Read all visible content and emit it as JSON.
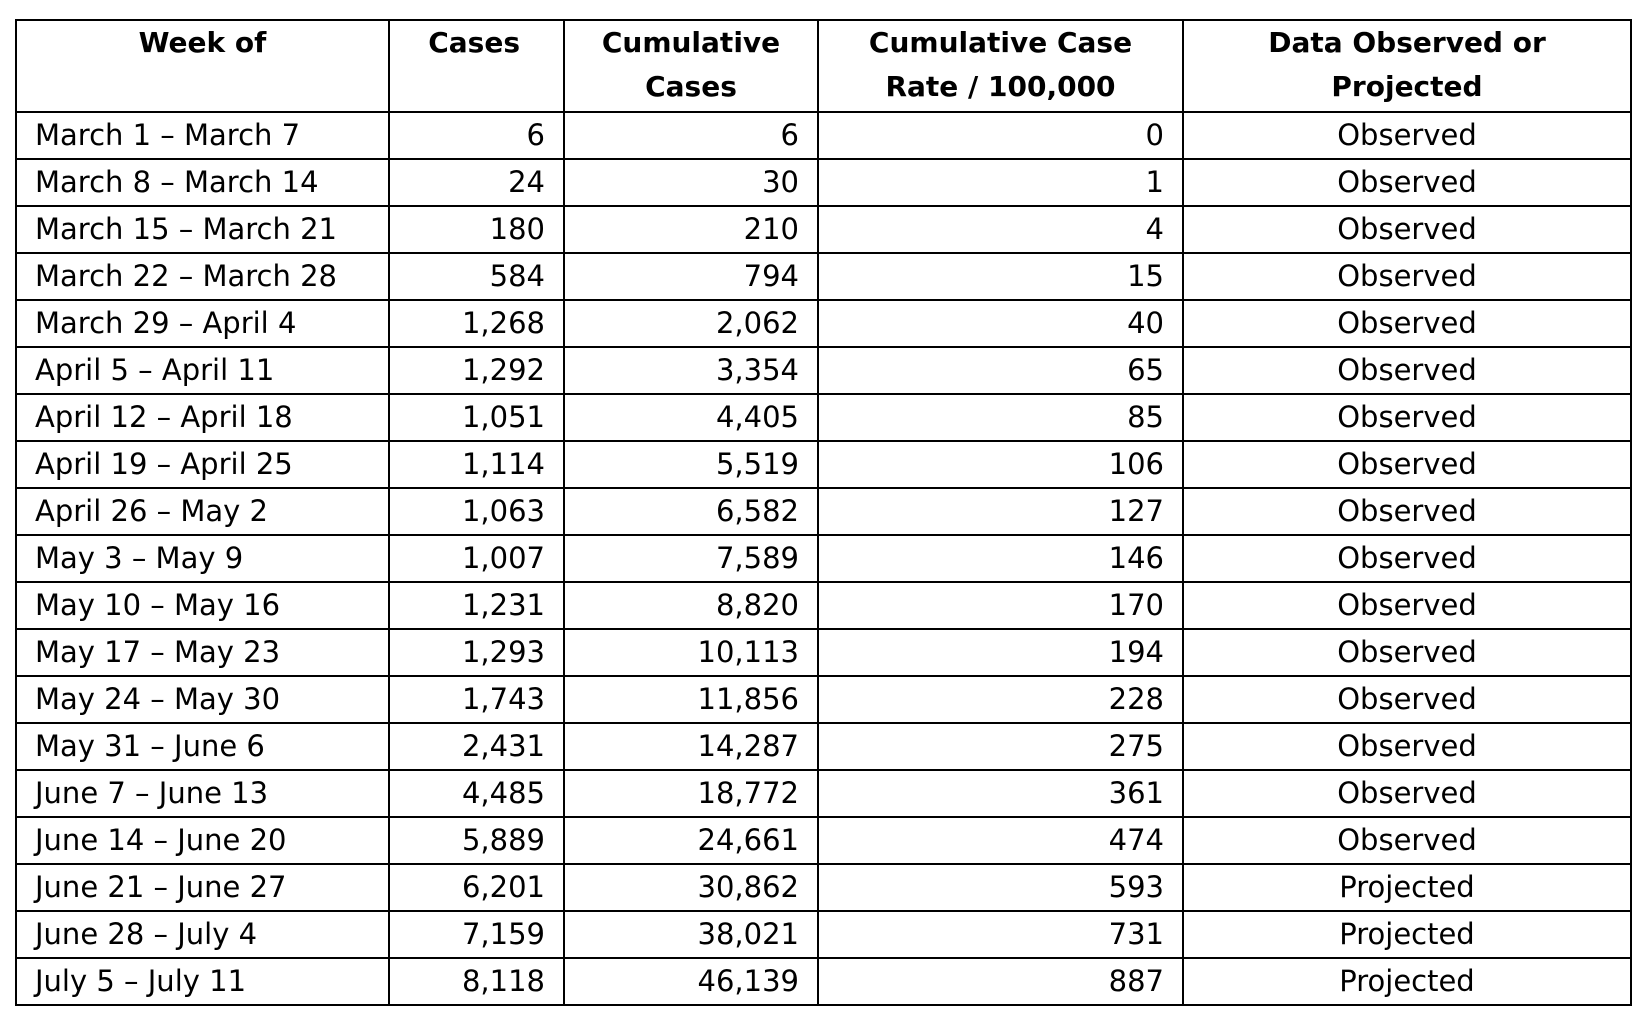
{
  "table": {
    "headers": [
      "Week of",
      "Cases",
      "Cumulative Cases",
      "Cumulative Case Rate / 100,000",
      "Data Observed or Projected"
    ],
    "rows": [
      [
        "March 1 – March 7",
        "6",
        "6",
        "0",
        "Observed"
      ],
      [
        "March 8 – March 14",
        "24",
        "30",
        "1",
        "Observed"
      ],
      [
        "March 15 – March 21",
        "180",
        "210",
        "4",
        "Observed"
      ],
      [
        "March 22 – March 28",
        "584",
        "794",
        "15",
        "Observed"
      ],
      [
        "March 29 – April 4",
        "1,268",
        "2,062",
        "40",
        "Observed"
      ],
      [
        "April 5 – April 11",
        "1,292",
        "3,354",
        "65",
        "Observed"
      ],
      [
        "April 12 – April 18",
        "1,051",
        "4,405",
        "85",
        "Observed"
      ],
      [
        "April 19 – April 25",
        "1,114",
        "5,519",
        "106",
        "Observed"
      ],
      [
        "April 26 – May 2",
        "1,063",
        "6,582",
        "127",
        "Observed"
      ],
      [
        "May 3 – May 9",
        "1,007",
        "7,589",
        "146",
        "Observed"
      ],
      [
        "May 10 – May 16",
        "1,231",
        "8,820",
        "170",
        "Observed"
      ],
      [
        "May 17 – May 23",
        "1,293",
        "10,113",
        "194",
        "Observed"
      ],
      [
        "May 24 – May 30",
        "1,743",
        "11,856",
        "228",
        "Observed"
      ],
      [
        "May 31 – June 6",
        "2,431",
        "14,287",
        "275",
        "Observed"
      ],
      [
        "June 7 – June 13",
        "4,485",
        "18,772",
        "361",
        "Observed"
      ],
      [
        "June 14 – June 20",
        "5,889",
        "24,661",
        "474",
        "Observed"
      ],
      [
        "June 21 – June 27",
        "6,201",
        "30,862",
        "593",
        "Projected"
      ],
      [
        "June 28 – July 4",
        "7,159",
        "38,021",
        "731",
        "Projected"
      ],
      [
        "July 5 – July 11",
        "8,118",
        "46,139",
        "887",
        "Projected"
      ]
    ]
  }
}
